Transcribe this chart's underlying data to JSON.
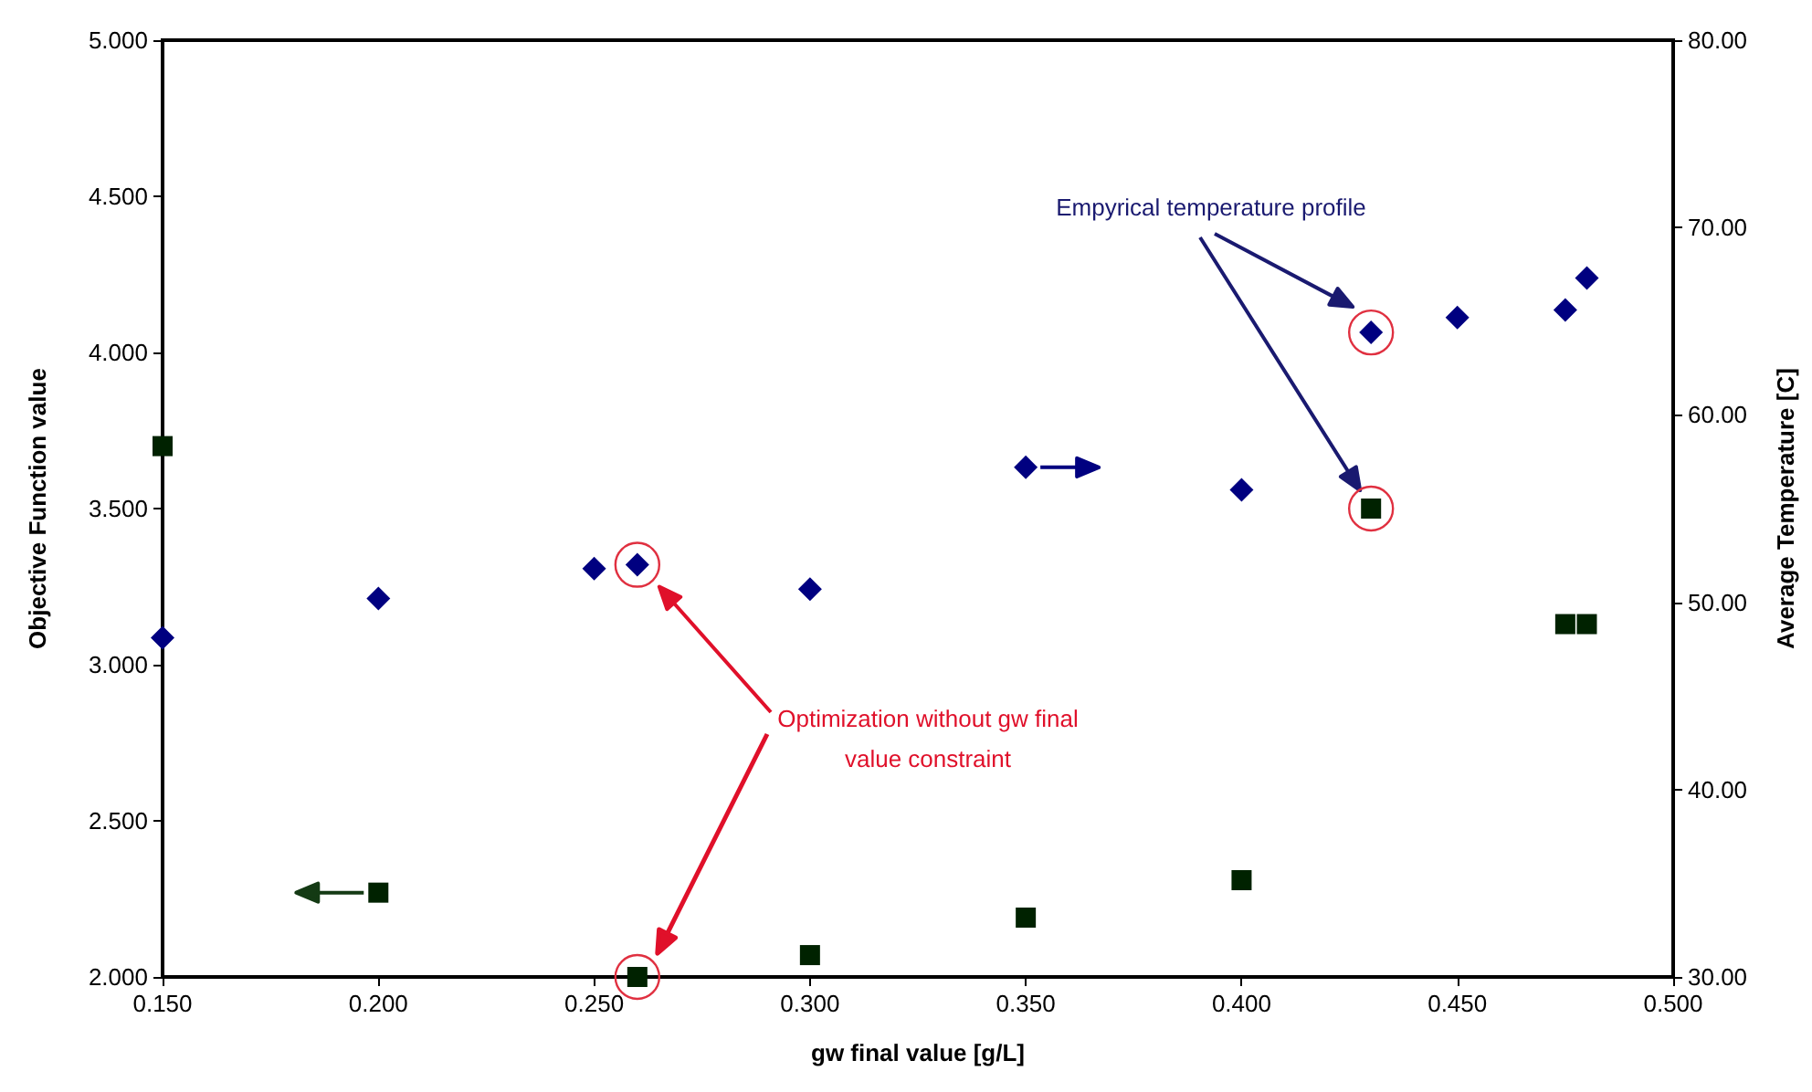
{
  "chart_data": {
    "type": "scatter",
    "xlabel": "gw final value [g/L]",
    "ylabel": "Objective Function value",
    "y2label": "Average Temperature [C]",
    "annotations": [
      "Empyrical temperature profile",
      "Optimization without gw final value constraint"
    ],
    "xlim": [
      0.15,
      0.5
    ],
    "xticks": [
      {
        "value": 0.15,
        "label": "0.150"
      },
      {
        "value": 0.2,
        "label": "0.200"
      },
      {
        "value": 0.25,
        "label": "0.250"
      },
      {
        "value": 0.3,
        "label": "0.300"
      },
      {
        "value": 0.35,
        "label": "0.350"
      },
      {
        "value": 0.4,
        "label": "0.400"
      },
      {
        "value": 0.45,
        "label": "0.450"
      },
      {
        "value": 0.5,
        "label": "0.500"
      }
    ],
    "ylim": [
      2,
      5
    ],
    "yticks": [
      {
        "value": 2,
        "label": "2.000"
      },
      {
        "value": 2.5,
        "label": "2.500"
      },
      {
        "value": 3,
        "label": "3.000"
      },
      {
        "value": 3.5,
        "label": "3.500"
      },
      {
        "value": 4,
        "label": "4.000"
      },
      {
        "value": 4.5,
        "label": "4.500"
      },
      {
        "value": 5,
        "label": "5.000"
      }
    ],
    "y2lim": [
      30,
      80
    ],
    "y2ticks": [
      {
        "value": 30,
        "label": "30.00"
      },
      {
        "value": 40,
        "label": "40.00"
      },
      {
        "value": 50,
        "label": "50.00"
      },
      {
        "value": 60,
        "label": "60.00"
      },
      {
        "value": 70,
        "label": "70.00"
      },
      {
        "value": 80,
        "label": "80.00"
      }
    ],
    "grid": false,
    "series": [
      {
        "color": "#002200",
        "marker": "square",
        "x": [
          0.15,
          0.2,
          0.26,
          0.3,
          0.35,
          0.4,
          0.43,
          0.475,
          0.48
        ],
        "values": [
          3.7,
          2.27,
          2.0,
          2.07,
          2.19,
          2.31,
          3.5,
          3.13,
          3.13
        ]
      },
      {
        "color": "#000080",
        "marker": "diamond",
        "axis": "y2",
        "x": [
          0.15,
          0.2,
          0.25,
          0.26,
          0.3,
          0.35,
          0.4,
          0.43,
          0.45,
          0.475,
          0.48
        ],
        "values": [
          48.1,
          50.2,
          51.8,
          52.0,
          50.7,
          57.2,
          56.0,
          64.4,
          65.2,
          65.6,
          67.3
        ]
      }
    ]
  }
}
